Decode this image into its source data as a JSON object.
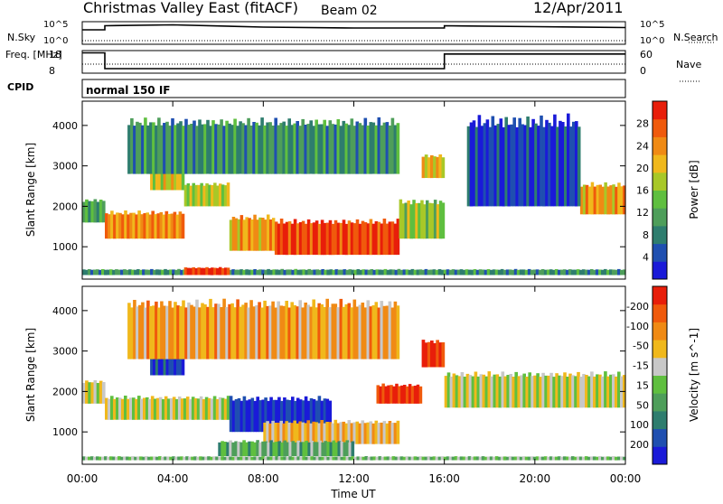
{
  "header": {
    "title": "Christmas Valley East (fitACF)",
    "beam": "Beam 02",
    "date": "12/Apr/2011"
  },
  "chart_data": [
    {
      "type": "line",
      "panel": "noise",
      "left_label": "N.Sky",
      "right_label": "N.Search",
      "left_ticks": [
        "10^5",
        "10^0"
      ],
      "right_ticks": [
        "10^5",
        "10^0"
      ],
      "series": [
        {
          "name": "N.Sky",
          "style": "solid",
          "x": [
            0,
            1,
            1,
            4,
            8,
            12,
            16,
            16,
            20,
            24
          ],
          "y": [
            3.2,
            3.2,
            4.1,
            4.3,
            3.8,
            3.6,
            3.6,
            4.1,
            3.9,
            3.7
          ]
        },
        {
          "name": "N.Search",
          "style": "dotted",
          "x": [
            0,
            24
          ],
          "y": [
            0.8,
            0.8
          ]
        }
      ]
    },
    {
      "type": "line",
      "panel": "frequency",
      "left_label": "Freq. [MHz]",
      "right_label": "Nave",
      "left_ticks": [
        "18",
        "8"
      ],
      "right_ticks": [
        "60",
        "0"
      ],
      "series": [
        {
          "name": "Freq.",
          "style": "solid",
          "x": [
            0,
            1,
            1,
            16,
            16,
            24
          ],
          "y": [
            17,
            17,
            10,
            10,
            16.5,
            16.5
          ]
        },
        {
          "name": "Nave",
          "style": "dotted",
          "x": [
            0,
            24
          ],
          "y": [
            12,
            12
          ]
        }
      ]
    },
    {
      "type": "table",
      "panel": "cpid",
      "label": "CPID",
      "segments": [
        {
          "start": 0,
          "end": 24,
          "text": "normal 150 IF"
        }
      ]
    },
    {
      "type": "heatmap",
      "panel": "power",
      "ylabel": "Slant Range [km]",
      "yticks": [
        1000,
        2000,
        3000,
        4000
      ],
      "ylim": [
        200,
        4600
      ],
      "xlim": [
        0,
        24
      ],
      "colorbar": {
        "label": "Power [dB]",
        "ticks": [
          "4",
          "8",
          "12",
          "16",
          "20",
          "24",
          "28"
        ],
        "colors": [
          "#1a1ad8",
          "#1f4fb0",
          "#2e7d6e",
          "#4e9e5a",
          "#5fbf3f",
          "#a8c828",
          "#f0b81c",
          "#f08a14",
          "#f05a0c",
          "#e81e0a"
        ]
      },
      "regions": [
        {
          "x": [
            0,
            1
          ],
          "y": [
            1600,
            2200
          ],
          "level": 0.35
        },
        {
          "x": [
            1,
            4.5
          ],
          "y": [
            1200,
            1900
          ],
          "level": 0.75
        },
        {
          "x": [
            3,
            4.5
          ],
          "y": [
            2400,
            2900
          ],
          "level": 0.6
        },
        {
          "x": [
            4.5,
            6.5
          ],
          "y": [
            2000,
            2600
          ],
          "level": 0.55
        },
        {
          "x": [
            6.5,
            8.5
          ],
          "y": [
            900,
            1800
          ],
          "level": 0.7
        },
        {
          "x": [
            8.5,
            14
          ],
          "y": [
            800,
            1700
          ],
          "level": 0.9
        },
        {
          "x": [
            14,
            16
          ],
          "y": [
            1200,
            2200
          ],
          "level": 0.5
        },
        {
          "x": [
            15,
            16
          ],
          "y": [
            2700,
            3300
          ],
          "level": 0.65
        },
        {
          "x": [
            22,
            24
          ],
          "y": [
            1800,
            2600
          ],
          "level": 0.7
        },
        {
          "x": [
            0,
            24
          ],
          "y": [
            300,
            450
          ],
          "level": 0.3
        },
        {
          "x": [
            4.5,
            6.5
          ],
          "y": [
            300,
            500
          ],
          "level": 0.95
        },
        {
          "x": [
            2,
            14
          ],
          "y": [
            2800,
            4200
          ],
          "level": 0.3
        },
        {
          "x": [
            17,
            22
          ],
          "y": [
            2000,
            4300
          ],
          "level": 0.1
        }
      ]
    },
    {
      "type": "heatmap",
      "panel": "velocity",
      "ylabel": "Slant Range [km]",
      "yticks": [
        1000,
        2000,
        3000,
        4000
      ],
      "ylim": [
        200,
        4600
      ],
      "xlim": [
        0,
        24
      ],
      "colorbar": {
        "label": "Velocity [m s^-1]",
        "ticks": [
          "200",
          "100",
          "50",
          "15",
          "-15",
          "-50",
          "-100",
          "-200"
        ],
        "colors": [
          "#1a1ad8",
          "#1f4fb0",
          "#2e7d6e",
          "#4e9e5a",
          "#5fbf3f",
          "#c8c8c8",
          "#f0b81c",
          "#f08a14",
          "#f05a0c",
          "#e81e0a"
        ]
      },
      "regions": [
        {
          "x": [
            0,
            1
          ],
          "y": [
            1700,
            2300
          ],
          "level": 0.55
        },
        {
          "x": [
            1,
            6.5
          ],
          "y": [
            1300,
            1900
          ],
          "level": 0.55
        },
        {
          "x": [
            6.5,
            11
          ],
          "y": [
            1000,
            1900
          ],
          "level": 0.08
        },
        {
          "x": [
            8,
            14
          ],
          "y": [
            700,
            1300
          ],
          "level": 0.65
        },
        {
          "x": [
            6,
            12
          ],
          "y": [
            400,
            800
          ],
          "level": 0.4
        },
        {
          "x": [
            13,
            15
          ],
          "y": [
            1700,
            2200
          ],
          "level": 0.95
        },
        {
          "x": [
            15,
            16
          ],
          "y": [
            2600,
            3300
          ],
          "level": 0.95
        },
        {
          "x": [
            16,
            24
          ],
          "y": [
            1600,
            2500
          ],
          "level": 0.55
        },
        {
          "x": [
            3,
            4.5
          ],
          "y": [
            2400,
            2900
          ],
          "level": 0.1
        },
        {
          "x": [
            2,
            14
          ],
          "y": [
            2800,
            4300
          ],
          "level": 0.7
        },
        {
          "x": [
            0,
            24
          ],
          "y": [
            300,
            400
          ],
          "level": 0.45
        }
      ]
    }
  ],
  "xaxis": {
    "label": "Time UT",
    "ticks": [
      "00:00",
      "04:00",
      "08:00",
      "12:00",
      "16:00",
      "20:00",
      "00:00"
    ]
  }
}
